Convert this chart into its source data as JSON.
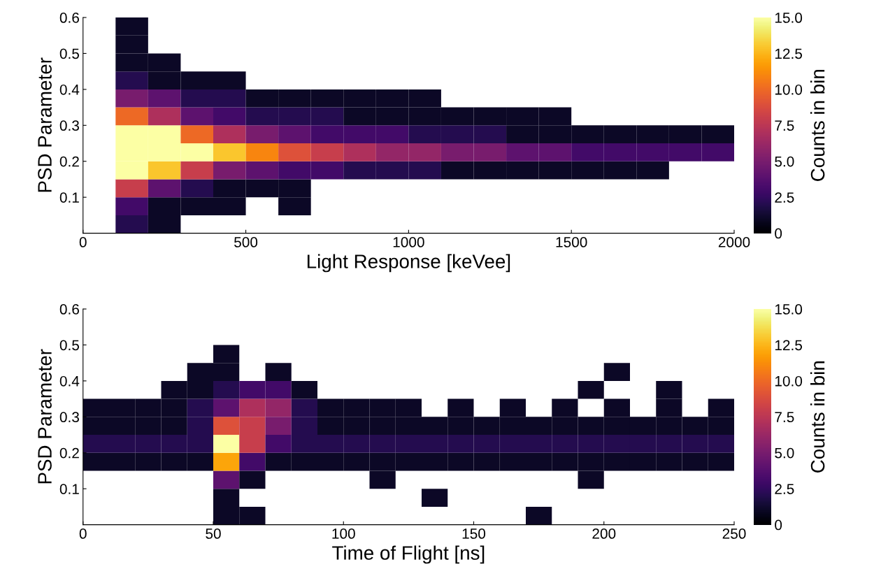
{
  "chart_data": [
    {
      "type": "heatmap",
      "xlabel": "Light Response [keVee]",
      "ylabel": "PSD Parameter",
      "clabel": "Counts in bin",
      "x": [
        50,
        150,
        250,
        350,
        450,
        550,
        650,
        750,
        850,
        950,
        1050,
        1150,
        1250,
        1350,
        1450,
        1550,
        1650,
        1750,
        1850,
        1950
      ],
      "y": [
        0.575,
        0.525,
        0.475,
        0.425,
        0.375,
        0.325,
        0.275,
        0.225,
        0.175,
        0.125,
        0.075,
        0.025
      ],
      "cells": [
        [
          null,
          1,
          null,
          null,
          null,
          null,
          null,
          null,
          null,
          null,
          null,
          null,
          null,
          null,
          null,
          null,
          null,
          null,
          null,
          null
        ],
        [
          null,
          1,
          null,
          null,
          null,
          null,
          null,
          null,
          null,
          null,
          null,
          null,
          null,
          null,
          null,
          null,
          null,
          null,
          null,
          null
        ],
        [
          null,
          1,
          1,
          null,
          null,
          null,
          null,
          null,
          null,
          null,
          null,
          null,
          null,
          null,
          null,
          null,
          null,
          null,
          null,
          null
        ],
        [
          null,
          2,
          1,
          1,
          1,
          null,
          null,
          null,
          null,
          null,
          null,
          null,
          null,
          null,
          null,
          null,
          null,
          null,
          null,
          null
        ],
        [
          null,
          5,
          4,
          2,
          2,
          1,
          1,
          1,
          1,
          1,
          1,
          null,
          null,
          null,
          null,
          null,
          null,
          null,
          null,
          null
        ],
        [
          null,
          10,
          7,
          4,
          3,
          2,
          2,
          2,
          1,
          1,
          1,
          1,
          1,
          1,
          1,
          null,
          null,
          null,
          null,
          null
        ],
        [
          null,
          15,
          15,
          10,
          7,
          5,
          4,
          3,
          3,
          3,
          2,
          2,
          2,
          1,
          1,
          1,
          1,
          1,
          1,
          1
        ],
        [
          null,
          15,
          15,
          15,
          13,
          11,
          9,
          8,
          7,
          6,
          6,
          5,
          5,
          4,
          4,
          3,
          3,
          3,
          3,
          3
        ],
        [
          null,
          15,
          13,
          8,
          5,
          4,
          3,
          3,
          2,
          2,
          2,
          1,
          1,
          1,
          1,
          1,
          1,
          1,
          null,
          null
        ],
        [
          null,
          8,
          4,
          2,
          1,
          1,
          1,
          null,
          null,
          null,
          null,
          null,
          null,
          null,
          null,
          null,
          null,
          null,
          null,
          null
        ],
        [
          null,
          3,
          1,
          1,
          1,
          null,
          1,
          null,
          null,
          null,
          null,
          null,
          null,
          null,
          null,
          null,
          null,
          null,
          null,
          null
        ],
        [
          null,
          2,
          1,
          null,
          null,
          null,
          null,
          null,
          null,
          null,
          null,
          null,
          null,
          null,
          null,
          null,
          null,
          null,
          null,
          null
        ]
      ],
      "clim": [
        0,
        15
      ],
      "cticks": [
        0,
        2.5,
        {
          "value": 5,
          "label": "5.0"
        },
        7.5,
        {
          "value": 10,
          "label": "10.0"
        },
        12.5,
        {
          "value": 15,
          "label": "15.0"
        }
      ],
      "xlim": [
        0,
        2000
      ],
      "xticks": [
        0,
        500,
        1000,
        1500,
        2000
      ],
      "ylim": [
        0,
        0.6
      ],
      "yticks": [
        0.1,
        0.2,
        0.3,
        0.4,
        0.5,
        0.6
      ]
    },
    {
      "type": "heatmap",
      "xlabel": "Time of Flight [ns]",
      "ylabel": "PSD Parameter",
      "clabel": "Counts in bin",
      "x": [
        5,
        15,
        25,
        35,
        45,
        55,
        65,
        75,
        85,
        95,
        105,
        115,
        125,
        135,
        145,
        155,
        165,
        175,
        185,
        195,
        205,
        215,
        225,
        235,
        245
      ],
      "y": [
        0.475,
        0.425,
        0.375,
        0.325,
        0.275,
        0.225,
        0.175,
        0.125,
        0.075,
        0.025
      ],
      "cells": [
        [
          null,
          null,
          null,
          null,
          null,
          1,
          null,
          null,
          null,
          null,
          null,
          null,
          null,
          null,
          null,
          null,
          null,
          null,
          null,
          null,
          null,
          null,
          null,
          null,
          null
        ],
        [
          null,
          null,
          null,
          null,
          1,
          1,
          null,
          1,
          null,
          null,
          null,
          null,
          null,
          null,
          null,
          null,
          null,
          null,
          null,
          null,
          1,
          null,
          null,
          null,
          null
        ],
        [
          null,
          null,
          null,
          1,
          1,
          2,
          3,
          3,
          1,
          null,
          null,
          null,
          null,
          null,
          null,
          null,
          null,
          null,
          null,
          1,
          null,
          null,
          1,
          null,
          null
        ],
        [
          1,
          1,
          1,
          1,
          2,
          4,
          7,
          6,
          2,
          1,
          1,
          1,
          1,
          null,
          1,
          null,
          1,
          null,
          1,
          null,
          1,
          null,
          1,
          null,
          1
        ],
        [
          1,
          1,
          1,
          1,
          2,
          9,
          8,
          5,
          2,
          1,
          1,
          1,
          1,
          1,
          1,
          1,
          1,
          1,
          1,
          1,
          1,
          1,
          1,
          1,
          1
        ],
        [
          2,
          2,
          2,
          2,
          2,
          15,
          8,
          3,
          2,
          2,
          2,
          2,
          2,
          2,
          2,
          2,
          2,
          2,
          2,
          2,
          2,
          2,
          2,
          2,
          2
        ],
        [
          1,
          1,
          1,
          1,
          1,
          12,
          3,
          1,
          1,
          1,
          1,
          1,
          1,
          1,
          1,
          1,
          1,
          1,
          1,
          1,
          1,
          1,
          1,
          1,
          1
        ],
        [
          null,
          null,
          null,
          null,
          null,
          4,
          1,
          null,
          null,
          null,
          null,
          1,
          null,
          null,
          null,
          null,
          null,
          null,
          null,
          1,
          null,
          null,
          null,
          null,
          null
        ],
        [
          null,
          null,
          null,
          null,
          null,
          1,
          null,
          null,
          null,
          null,
          null,
          null,
          null,
          1,
          null,
          null,
          null,
          null,
          null,
          null,
          null,
          null,
          null,
          null,
          null
        ],
        [
          null,
          null,
          null,
          null,
          null,
          1,
          1,
          null,
          null,
          null,
          null,
          null,
          null,
          null,
          null,
          null,
          null,
          1,
          null,
          null,
          null,
          null,
          null,
          null,
          null
        ]
      ],
      "clim": [
        0,
        15
      ],
      "cticks": [
        0,
        2.5,
        {
          "value": 5,
          "label": "5.0"
        },
        7.5,
        {
          "value": 10,
          "label": "10.0"
        },
        12.5,
        {
          "value": 15,
          "label": "15.0"
        }
      ],
      "xlim": [
        0,
        250
      ],
      "xticks": [
        0,
        50,
        100,
        150,
        200,
        250
      ],
      "ylim": [
        0,
        0.6
      ],
      "yticks": [
        0.1,
        0.2,
        0.3,
        0.4,
        0.5,
        0.6
      ]
    }
  ]
}
